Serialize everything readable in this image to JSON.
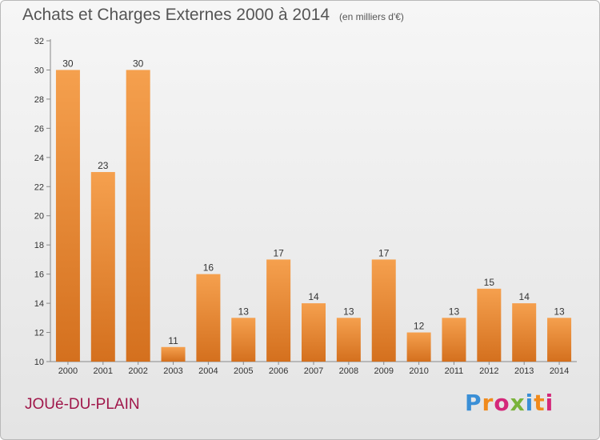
{
  "chart_data": {
    "type": "bar",
    "title": "Achats et Charges Externes 2000 à 2014",
    "subtitle": "(en milliers d'€)",
    "categories": [
      "2000",
      "2001",
      "2002",
      "2003",
      "2004",
      "2005",
      "2006",
      "2007",
      "2008",
      "2009",
      "2010",
      "2011",
      "2012",
      "2013",
      "2014"
    ],
    "values": [
      30,
      23,
      30,
      11,
      16,
      13,
      17,
      14,
      13,
      17,
      12,
      13,
      15,
      14,
      13
    ],
    "ylim": [
      10,
      32
    ],
    "yticks": [
      10,
      12,
      14,
      16,
      18,
      20,
      22,
      24,
      26,
      28,
      30,
      32
    ],
    "xlabel": "",
    "ylabel": "",
    "grid": false,
    "bar_color": "#f28f3b",
    "bar_color_dark": "#d4701e"
  },
  "place_name": "JOUé-DU-PLAIN",
  "brand": {
    "letters": [
      "P",
      "r",
      "o",
      "x",
      "i",
      "t",
      "i"
    ],
    "colors": [
      "#3a8fd6",
      "#f08a1c",
      "#d4287a",
      "#7ab33a",
      "#3a8fd6",
      "#f08a1c",
      "#d4287a"
    ]
  }
}
